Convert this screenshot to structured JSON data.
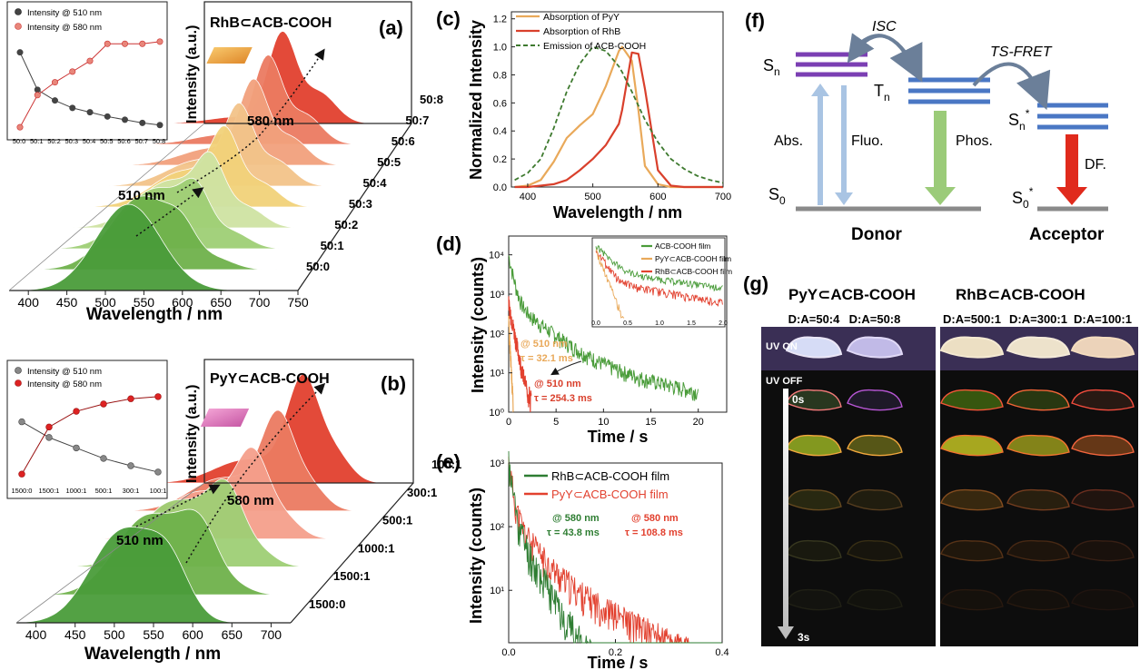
{
  "colors": {
    "green": "#4a9c3a",
    "lightgreen": "#9fcf75",
    "yellow": "#f2d27a",
    "orange": "#e9a95a",
    "red": "#e2412f",
    "darkgreen": "#2e7d32",
    "purple": "#7b3fb3",
    "blue": "#4a77c4",
    "lightblue": "#a9c4e3",
    "phos": "#9bcb79",
    "dfred": "#e02a1c",
    "gray": "#8a8a8a"
  },
  "panel_a": {
    "label": "(a)",
    "title": "RhB⊂ACB-COOH",
    "ylabel": "Intensity (a.u.)",
    "xlabel": "Wavelength / nm",
    "xticks": [
      "400",
      "450",
      "500",
      "550",
      "600",
      "650",
      "700",
      "750"
    ],
    "ann_510": "510 nm",
    "ann_580": "580 nm",
    "ratios": [
      "50:0",
      "50:1",
      "50:2",
      "50:3",
      "50:4",
      "50:5",
      "50:6",
      "50:7",
      "50:8"
    ]
  },
  "panel_b": {
    "label": "(b)",
    "title": "PyY⊂ACB-COOH",
    "ylabel": "Intensity (a.u.)",
    "xlabel": "Wavelength / nm",
    "xticks": [
      "400",
      "450",
      "500",
      "550",
      "600",
      "650",
      "700"
    ],
    "ann_510": "510 nm",
    "ann_580": "580 nm",
    "ratios": [
      "1500:0",
      "1500:1",
      "1000:1",
      "500:1",
      "300:1",
      "100:1"
    ]
  },
  "panel_c": {
    "label": "(c)",
    "ylabel": "Normalized Intensity",
    "xlabel": "Wavelength / nm",
    "yticks": [
      "0.0",
      "0.2",
      "0.4",
      "0.6",
      "0.8",
      "1.0",
      "1.2"
    ],
    "xticks": [
      "400",
      "500",
      "600",
      "700"
    ],
    "legend": [
      "Absorption of PyY",
      "Absorption of RhB",
      "Emission of ACB-COOH"
    ]
  },
  "panel_d": {
    "label": "(d)",
    "ylabel": "Intensity (counts)",
    "xlabel": "Time / s",
    "yticks": [
      "10⁰",
      "10¹",
      "10²",
      "10³",
      "10⁴"
    ],
    "xticks": [
      "0",
      "5",
      "10",
      "15",
      "20"
    ],
    "ann_y1": "@ 510 nm",
    "ann_y2": "τ = 32.1 ms",
    "ann_r1": "@ 510 nm",
    "ann_r2": "τ = 254.3 ms",
    "inset_legend": [
      "ACB-COOH film",
      "PyY⊂ACB-COOH film",
      "RhB⊂ACB-COOH film"
    ],
    "inset_xticks": [
      "0.0",
      "0.5",
      "1.0",
      "1.5",
      "2.0"
    ]
  },
  "panel_e": {
    "label": "(e)",
    "ylabel": "Intensity (counts)",
    "xlabel": "Time / s",
    "yticks": [
      "10¹",
      "10²",
      "10³"
    ],
    "xticks": [
      "0.0",
      "0.2",
      "0.4"
    ],
    "legend": [
      "RhB⊂ACB-COOH film",
      "PyY⊂ACB-COOH film"
    ],
    "ann_g1": "@ 580 nm",
    "ann_g2": "τ = 43.8 ms",
    "ann_r1": "@ 580 nm",
    "ann_r2": "τ = 108.8 ms"
  },
  "panel_f": {
    "label": "(f)",
    "sn": "S",
    "sn_sub": "n",
    "tn": "T",
    "tn_sub": "n",
    "sn2": "S",
    "sn2_sub": "n",
    "sn2_sup": "*",
    "s0": "S",
    "s0_sub": "0",
    "s0b": "S",
    "s0b_sub": "0",
    "s0b_sup": "*",
    "isc": "ISC",
    "tsfret": "TS-FRET",
    "abs": "Abs.",
    "fluo": "Fluo.",
    "phos": "Phos.",
    "df": "DF.",
    "donor": "Donor",
    "acceptor": "Acceptor"
  },
  "panel_g": {
    "label": "(g)",
    "group1": "PyY⊂ACB-COOH",
    "group2": "RhB⊂ACB-COOH",
    "cols": [
      "D:A=50:4",
      "D:A=50:8",
      "D:A=500:1",
      "D:A=300:1",
      "D:A=100:1"
    ],
    "uv_on": "UV ON",
    "uv_off": "UV OFF",
    "t0": "0s",
    "t3": "3s"
  },
  "chart_data": [
    {
      "type": "line",
      "title": "RhB⊂ACB-COOH",
      "xlabel": "Wavelength / nm",
      "ylabel": "Intensity (a.u.)",
      "xlim": [
        375,
        750
      ],
      "series_names": [
        "50:0",
        "50:1",
        "50:2",
        "50:3",
        "50:4",
        "50:5",
        "50:6",
        "50:7",
        "50:8"
      ],
      "peak_510": [
        1.0,
        0.85,
        0.7,
        0.55,
        0.42,
        0.3,
        0.2,
        0.12,
        0.08
      ],
      "peak_580": [
        0.0,
        0.25,
        0.45,
        0.6,
        0.72,
        0.8,
        0.88,
        0.95,
        1.0
      ],
      "inset": {
        "categories": [
          "50:0",
          "50:1",
          "50:2",
          "50:3",
          "50:4",
          "50:5",
          "50:6",
          "50:7",
          "50:8"
        ],
        "series": [
          {
            "name": "Intensity @ 510 nm",
            "values": [
              0.9,
              0.55,
              0.45,
              0.38,
              0.34,
              0.3,
              0.27,
              0.24,
              0.22
            ]
          },
          {
            "name": "Intensity @ 580 nm",
            "values": [
              0.2,
              0.5,
              0.62,
              0.72,
              0.82,
              0.98,
              0.98,
              0.98,
              1.0
            ]
          }
        ]
      }
    },
    {
      "type": "line",
      "title": "PyY⊂ACB-COOH",
      "xlabel": "Wavelength / nm",
      "ylabel": "Intensity (a.u.)",
      "xlim": [
        375,
        725
      ],
      "series_names": [
        "1500:0",
        "1500:1",
        "1000:1",
        "500:1",
        "300:1",
        "100:1"
      ],
      "inset": {
        "categories": [
          "1500:0",
          "1500:1",
          "1000:1",
          "500:1",
          "300:1",
          "100:1"
        ],
        "series": [
          {
            "name": "Intensity @ 510 nm",
            "values": [
              0.8,
              0.65,
              0.55,
              0.45,
              0.38,
              0.32
            ]
          },
          {
            "name": "Intensity @ 580 nm",
            "values": [
              0.3,
              0.75,
              0.9,
              0.97,
              1.02,
              1.04
            ]
          }
        ]
      }
    },
    {
      "type": "line",
      "xlabel": "Wavelength / nm",
      "ylabel": "Normalized Intensity",
      "xlim": [
        375,
        700
      ],
      "ylim": [
        0,
        1.25
      ],
      "x": [
        380,
        400,
        420,
        440,
        460,
        480,
        500,
        520,
        540,
        545,
        560,
        570,
        580,
        600,
        620,
        640,
        660,
        680,
        700
      ],
      "series": [
        {
          "name": "Absorption of PyY",
          "values": [
            0.0,
            0.01,
            0.05,
            0.18,
            0.35,
            0.44,
            0.52,
            0.72,
            0.97,
            1.0,
            0.9,
            0.55,
            0.15,
            0.02,
            0.0,
            0.0,
            0.0,
            0.0,
            0.0
          ]
        },
        {
          "name": "Absorption of RhB",
          "values": [
            0.0,
            0.0,
            0.01,
            0.02,
            0.05,
            0.12,
            0.2,
            0.3,
            0.45,
            0.55,
            0.96,
            0.95,
            0.7,
            0.12,
            0.01,
            0.0,
            0.0,
            0.0,
            0.0
          ]
        },
        {
          "name": "Emission of ACB-COOH",
          "values": [
            0.05,
            0.1,
            0.2,
            0.42,
            0.68,
            0.88,
            1.0,
            0.97,
            0.86,
            0.82,
            0.68,
            0.58,
            0.48,
            0.32,
            0.2,
            0.13,
            0.08,
            0.05,
            0.03
          ]
        }
      ]
    },
    {
      "type": "line",
      "xlabel": "Time / s",
      "ylabel": "Intensity (counts)",
      "xlim": [
        0,
        23
      ],
      "ylim": [
        1,
        30000
      ],
      "yscale": "log",
      "series": [
        {
          "name": "ACB-COOH film",
          "tau_ms": 254.3
        },
        {
          "name": "PyY⊂ACB-COOH film",
          "tau_ms": 32.1
        },
        {
          "name": "RhB⊂ACB-COOH film"
        }
      ]
    },
    {
      "type": "line",
      "xlabel": "Time / s",
      "ylabel": "Intensity (counts)",
      "xlim": [
        0,
        0.4
      ],
      "ylim": [
        1.5,
        1000
      ],
      "yscale": "log",
      "series": [
        {
          "name": "RhB⊂ACB-COOH film",
          "tau_ms": 43.8
        },
        {
          "name": "PyY⊂ACB-COOH film",
          "tau_ms": 108.8
        }
      ]
    }
  ]
}
